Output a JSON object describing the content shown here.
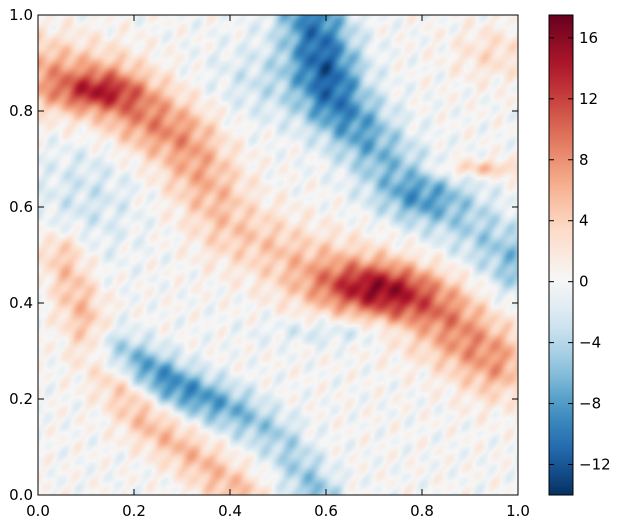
{
  "chart_data": {
    "type": "heatmap",
    "title": "",
    "xlabel": "",
    "ylabel": "",
    "xlim": [
      0.0,
      1.0
    ],
    "ylim": [
      0.0,
      1.0
    ],
    "x_ticks": [
      0.0,
      0.2,
      0.4,
      0.6,
      0.8,
      1.0
    ],
    "x_tick_labels": [
      "0.0",
      "0.2",
      "0.4",
      "0.6",
      "0.8",
      "1.0"
    ],
    "y_ticks": [
      0.0,
      0.2,
      0.4,
      0.6,
      0.8,
      1.0
    ],
    "y_tick_labels": [
      "0.0",
      "0.2",
      "0.4",
      "0.6",
      "0.8",
      "1.0"
    ],
    "colormap": "RdBu_r",
    "colorbar": {
      "range": [
        -14,
        17.5
      ],
      "ticks": [
        -12,
        -8,
        -4,
        0,
        4,
        8,
        12,
        16
      ],
      "tick_labels": [
        "−12",
        "−8",
        "−4",
        "0",
        "4",
        "8",
        "12",
        "16"
      ]
    },
    "features": [
      {
        "name": "upper-left positive band",
        "sign": "positive",
        "peak": 14,
        "peak_at": [
          0.12,
          0.84
        ],
        "path": [
          [
            0.0,
            0.88
          ],
          [
            0.15,
            0.84
          ],
          [
            0.3,
            0.74
          ],
          [
            0.4,
            0.56
          ],
          [
            0.55,
            0.48
          ],
          [
            0.7,
            0.43
          ],
          [
            0.85,
            0.36
          ],
          [
            0.95,
            0.28
          ]
        ]
      },
      {
        "name": "central positive maximum",
        "sign": "positive",
        "peak": 17,
        "peak_at": [
          0.72,
          0.43
        ]
      },
      {
        "name": "upper-right negative band",
        "sign": "negative",
        "peak": -13,
        "peak_at": [
          0.78,
          0.62
        ],
        "path": [
          [
            0.57,
            1.0
          ],
          [
            0.62,
            0.82
          ],
          [
            0.72,
            0.7
          ],
          [
            0.8,
            0.62
          ],
          [
            0.9,
            0.56
          ],
          [
            1.0,
            0.48
          ]
        ]
      },
      {
        "name": "lower-left negative band",
        "sign": "negative",
        "peak": -12,
        "peak_at": [
          0.45,
          0.15
        ],
        "path": [
          [
            0.15,
            0.3
          ],
          [
            0.3,
            0.22
          ],
          [
            0.42,
            0.17
          ],
          [
            0.5,
            0.12
          ],
          [
            0.55,
            0.05
          ],
          [
            0.58,
            0.0
          ]
        ]
      },
      {
        "name": "lower-left positive band",
        "sign": "positive",
        "peak": 7,
        "peak_at": [
          0.25,
          0.12
        ],
        "path": [
          [
            0.05,
            0.5
          ],
          [
            0.12,
            0.3
          ],
          [
            0.22,
            0.16
          ],
          [
            0.35,
            0.06
          ],
          [
            0.42,
            0.0
          ]
        ]
      },
      {
        "name": "right edge positive streak",
        "sign": "positive",
        "peak": 6,
        "peak_at": [
          0.92,
          0.68
        ]
      },
      {
        "name": "upper-right edge positive patch",
        "sign": "positive",
        "peak": 4,
        "peak_at": [
          0.95,
          0.92
        ]
      }
    ]
  }
}
